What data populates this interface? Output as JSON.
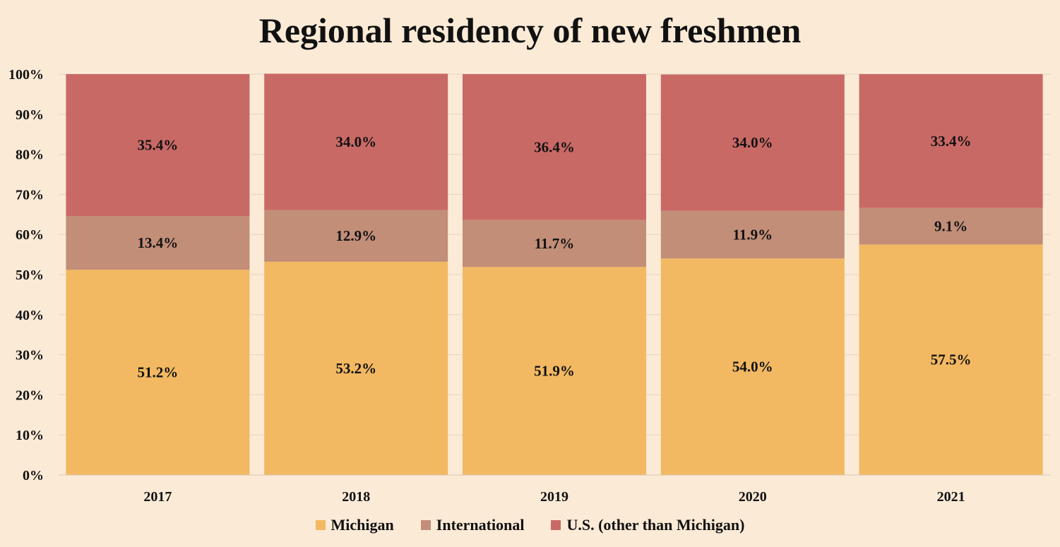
{
  "chart_data": {
    "type": "bar",
    "stacked": true,
    "title": "Regional residency of new freshmen",
    "categories": [
      "2017",
      "2018",
      "2019",
      "2020",
      "2021"
    ],
    "series": [
      {
        "name": "Michigan",
        "color": "#f2b862",
        "values": [
          51.2,
          53.2,
          51.9,
          54.0,
          57.5
        ],
        "labels": [
          "51.2%",
          "53.2%",
          "51.9%",
          "54.0%",
          "57.5%"
        ]
      },
      {
        "name": "International",
        "color": "#c28e78",
        "values": [
          13.4,
          12.9,
          11.7,
          11.9,
          9.1
        ],
        "labels": [
          "13.4%",
          "12.9%",
          "11.7%",
          "11.9%",
          "9.1%"
        ]
      },
      {
        "name": "U.S. (other than Michigan)",
        "color": "#c96966",
        "values": [
          35.4,
          34.0,
          36.4,
          34.0,
          33.4
        ],
        "labels": [
          "35.4%",
          "34.0%",
          "36.4%",
          "34.0%",
          "33.4%"
        ]
      }
    ],
    "yticks": [
      "0%",
      "10%",
      "20%",
      "30%",
      "40%",
      "50%",
      "60%",
      "70%",
      "80%",
      "90%",
      "100%"
    ],
    "ylim": [
      0,
      100
    ],
    "grid": true,
    "legend_position": "bottom"
  }
}
